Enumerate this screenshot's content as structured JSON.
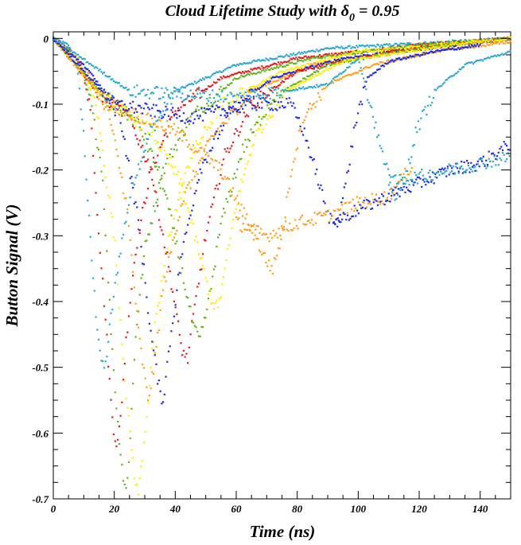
{
  "chart_data": {
    "type": "scatter",
    "title_main": "Cloud Lifetime Study with δ",
    "title_sub": "0",
    "title_tail": " = 0.95",
    "xlabel": "Time (ns)",
    "ylabel": "Button Signal (V)",
    "xlim": [
      0,
      150
    ],
    "ylim": [
      -0.7,
      0.01
    ],
    "xticks": [
      0,
      20,
      40,
      60,
      80,
      100,
      120,
      140
    ],
    "xtick_labels": [
      "0",
      "20",
      "40",
      "60",
      "80",
      "100",
      "120",
      "140"
    ],
    "yticks": [
      0,
      -0.1,
      -0.2,
      -0.3,
      -0.4,
      -0.5,
      -0.6,
      -0.7
    ],
    "ytick_labels": [
      "0",
      "-0.1",
      "-0.2",
      "-0.3",
      "-0.4",
      "-0.5",
      "-0.6",
      "-0.7"
    ],
    "grid": false,
    "legend": "none",
    "series": [
      {
        "color": "#29a8d0",
        "points": [
          [
            0,
            0
          ],
          [
            5,
            -0.01
          ],
          [
            8,
            -0.05
          ],
          [
            10,
            -0.15
          ],
          [
            12,
            -0.3
          ],
          [
            14,
            -0.42
          ],
          [
            16,
            -0.5
          ],
          [
            17,
            -0.5
          ],
          [
            19,
            -0.42
          ],
          [
            22,
            -0.32
          ],
          [
            26,
            -0.22
          ],
          [
            32,
            -0.14
          ],
          [
            40,
            -0.08
          ],
          [
            60,
            -0.04
          ],
          [
            90,
            -0.015
          ],
          [
            150,
            0
          ]
        ]
      },
      {
        "color": "#e21b1b",
        "points": [
          [
            0,
            0
          ],
          [
            6,
            -0.02
          ],
          [
            9,
            -0.04
          ],
          [
            12,
            -0.1
          ],
          [
            15,
            -0.3
          ],
          [
            17,
            -0.42
          ],
          [
            19,
            -0.56
          ],
          [
            20,
            -0.6
          ],
          [
            21,
            -0.62
          ],
          [
            22,
            -0.58
          ],
          [
            24,
            -0.45
          ],
          [
            27,
            -0.32
          ],
          [
            32,
            -0.2
          ],
          [
            40,
            -0.11
          ],
          [
            55,
            -0.06
          ],
          [
            80,
            -0.03
          ],
          [
            120,
            -0.01
          ],
          [
            150,
            0
          ]
        ]
      },
      {
        "color": "#66b21c",
        "points": [
          [
            0,
            0
          ],
          [
            8,
            -0.03
          ],
          [
            12,
            -0.09
          ],
          [
            16,
            -0.2
          ],
          [
            19,
            -0.45
          ],
          [
            21,
            -0.58
          ],
          [
            23,
            -0.67
          ],
          [
            24,
            -0.69
          ],
          [
            25,
            -0.62
          ],
          [
            27,
            -0.45
          ],
          [
            30,
            -0.32
          ],
          [
            36,
            -0.2
          ],
          [
            45,
            -0.12
          ],
          [
            60,
            -0.06
          ],
          [
            85,
            -0.03
          ],
          [
            120,
            -0.01
          ],
          [
            150,
            0
          ]
        ]
      },
      {
        "color": "#ffee00",
        "points": [
          [
            0,
            0
          ],
          [
            8,
            -0.03
          ],
          [
            14,
            -0.1
          ],
          [
            20,
            -0.3
          ],
          [
            24,
            -0.55
          ],
          [
            27,
            -0.68
          ],
          [
            28,
            -0.69
          ],
          [
            30,
            -0.6
          ],
          [
            33,
            -0.45
          ],
          [
            38,
            -0.3
          ],
          [
            45,
            -0.18
          ],
          [
            55,
            -0.1
          ],
          [
            75,
            -0.05
          ],
          [
            100,
            -0.02
          ],
          [
            150,
            0
          ]
        ]
      },
      {
        "color": "#ff9e18",
        "points": [
          [
            0,
            0
          ],
          [
            10,
            -0.04
          ],
          [
            18,
            -0.11
          ],
          [
            24,
            -0.25
          ],
          [
            28,
            -0.45
          ],
          [
            31,
            -0.55
          ],
          [
            33,
            -0.5
          ],
          [
            36,
            -0.38
          ],
          [
            42,
            -0.25
          ],
          [
            52,
            -0.15
          ],
          [
            65,
            -0.08
          ],
          [
            85,
            -0.04
          ],
          [
            120,
            -0.015
          ],
          [
            150,
            0
          ]
        ]
      },
      {
        "color": "#1f2ce0",
        "points": [
          [
            0,
            0
          ],
          [
            12,
            -0.05
          ],
          [
            22,
            -0.12
          ],
          [
            28,
            -0.28
          ],
          [
            32,
            -0.45
          ],
          [
            35,
            -0.54
          ],
          [
            36,
            -0.55
          ],
          [
            38,
            -0.47
          ],
          [
            42,
            -0.33
          ],
          [
            48,
            -0.2
          ],
          [
            58,
            -0.11
          ],
          [
            72,
            -0.06
          ],
          [
            95,
            -0.03
          ],
          [
            150,
            0
          ]
        ]
      },
      {
        "color": "#e21b1b",
        "points": [
          [
            0,
            0
          ],
          [
            14,
            -0.08
          ],
          [
            25,
            -0.12
          ],
          [
            32,
            -0.2
          ],
          [
            38,
            -0.35
          ],
          [
            42,
            -0.47
          ],
          [
            44,
            -0.49
          ],
          [
            46,
            -0.42
          ],
          [
            50,
            -0.3
          ],
          [
            56,
            -0.18
          ],
          [
            65,
            -0.1
          ],
          [
            80,
            -0.05
          ],
          [
            110,
            -0.02
          ],
          [
            150,
            0
          ]
        ]
      },
      {
        "color": "#66b21c",
        "points": [
          [
            0,
            0
          ],
          [
            15,
            -0.08
          ],
          [
            28,
            -0.13
          ],
          [
            36,
            -0.22
          ],
          [
            42,
            -0.35
          ],
          [
            46,
            -0.44
          ],
          [
            48,
            -0.46
          ],
          [
            51,
            -0.4
          ],
          [
            55,
            -0.28
          ],
          [
            62,
            -0.17
          ],
          [
            72,
            -0.09
          ],
          [
            90,
            -0.04
          ],
          [
            120,
            -0.015
          ],
          [
            150,
            0
          ]
        ]
      },
      {
        "color": "#ffee00",
        "points": [
          [
            0,
            0
          ],
          [
            16,
            -0.09
          ],
          [
            32,
            -0.14
          ],
          [
            42,
            -0.22
          ],
          [
            48,
            -0.33
          ],
          [
            52,
            -0.4
          ],
          [
            54,
            -0.41
          ],
          [
            56,
            -0.36
          ],
          [
            60,
            -0.25
          ],
          [
            66,
            -0.15
          ],
          [
            76,
            -0.08
          ],
          [
            95,
            -0.035
          ],
          [
            130,
            -0.01
          ],
          [
            150,
            0
          ]
        ]
      },
      {
        "color": "#ff9e18",
        "points": [
          [
            0,
            0
          ],
          [
            18,
            -0.1
          ],
          [
            40,
            -0.14
          ],
          [
            55,
            -0.2
          ],
          [
            64,
            -0.28
          ],
          [
            70,
            -0.34
          ],
          [
            72,
            -0.35
          ],
          [
            75,
            -0.3
          ],
          [
            78,
            -0.2
          ],
          [
            82,
            -0.12
          ],
          [
            90,
            -0.07
          ],
          [
            105,
            -0.04
          ],
          [
            125,
            -0.02
          ],
          [
            150,
            -0.005
          ]
        ]
      },
      {
        "color": "#1f2ce0",
        "points": [
          [
            0,
            0
          ],
          [
            20,
            -0.1
          ],
          [
            45,
            -0.12
          ],
          [
            65,
            -0.1
          ],
          [
            78,
            -0.1
          ],
          [
            82,
            -0.14
          ],
          [
            86,
            -0.2
          ],
          [
            90,
            -0.27
          ],
          [
            93,
            -0.28
          ],
          [
            96,
            -0.22
          ],
          [
            99,
            -0.13
          ],
          [
            103,
            -0.06
          ],
          [
            110,
            -0.035
          ],
          [
            125,
            -0.02
          ],
          [
            140,
            -0.01
          ]
        ]
      },
      {
        "color": "#29a8d0",
        "points": [
          [
            0,
            0
          ],
          [
            25,
            -0.08
          ],
          [
            60,
            -0.09
          ],
          [
            90,
            -0.07
          ],
          [
            100,
            -0.03
          ],
          [
            104,
            -0.1
          ],
          [
            108,
            -0.18
          ],
          [
            112,
            -0.24
          ],
          [
            115,
            -0.22
          ],
          [
            119,
            -0.14
          ],
          [
            125,
            -0.08
          ],
          [
            135,
            -0.04
          ],
          [
            150,
            -0.02
          ]
        ]
      },
      {
        "color": "#ff9e18",
        "points": [
          [
            60,
            -0.28
          ],
          [
            70,
            -0.3
          ],
          [
            80,
            -0.28
          ],
          [
            90,
            -0.27
          ],
          [
            100,
            -0.25
          ],
          [
            110,
            -0.24
          ],
          [
            115,
            -0.21
          ],
          [
            118,
            -0.19
          ]
        ]
      },
      {
        "color": "#1f2ce0",
        "points": [
          [
            92,
            -0.28
          ],
          [
            100,
            -0.26
          ],
          [
            110,
            -0.24
          ],
          [
            120,
            -0.22
          ],
          [
            130,
            -0.2
          ],
          [
            140,
            -0.19
          ],
          [
            150,
            -0.16
          ]
        ]
      },
      {
        "color": "#29a8d0",
        "points": [
          [
            110,
            -0.22
          ],
          [
            120,
            -0.21
          ],
          [
            130,
            -0.2
          ],
          [
            140,
            -0.19
          ],
          [
            150,
            -0.18
          ]
        ]
      }
    ]
  }
}
